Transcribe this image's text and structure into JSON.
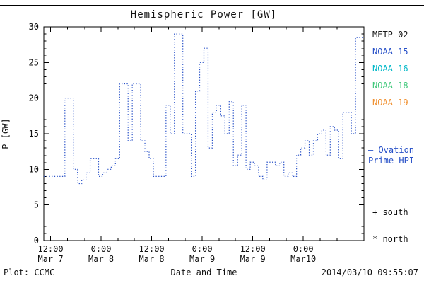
{
  "footer": {
    "plot_credit": "Plot: CCMC",
    "timestamp": "2014/03/10 09:55:07"
  },
  "legend": {
    "satellites": [
      {
        "label": "METP-02",
        "color": "#1a1a1a"
      },
      {
        "label": "NOAA-15",
        "color": "#2851c8"
      },
      {
        "label": "NOAA-16",
        "color": "#00b8c8"
      },
      {
        "label": "NOAA-18",
        "color": "#3fc87a"
      },
      {
        "label": "NOAA-19",
        "color": "#f09030"
      }
    ],
    "series_note": {
      "line1": "— Ovation",
      "line2": "Prime HPI",
      "color": "#2851c8"
    },
    "south_marker": "+ south",
    "north_marker": "* north"
  },
  "chart_data": {
    "type": "line",
    "subtype": "dotted-step",
    "title": "Hemispheric Power [GW]",
    "xlabel": "Date and Time",
    "ylabel": "P [GW]",
    "ylim": [
      0,
      30
    ],
    "yticks": [
      0,
      5,
      10,
      15,
      20,
      25,
      30
    ],
    "grid": false,
    "legend_position": "right",
    "line_color": "#2851c8",
    "x_unit": "hours, hourly Ovation Prime HPI values starting ~10:00 UT Mar 7 2014",
    "xticks": [
      {
        "pos_hours": 1.6,
        "time": "12:00",
        "date": "Mar 7"
      },
      {
        "pos_hours": 13.6,
        "time": "0:00",
        "date": "Mar 8"
      },
      {
        "pos_hours": 25.6,
        "time": "12:00",
        "date": "Mar 8"
      },
      {
        "pos_hours": 37.6,
        "time": "0:00",
        "date": "Mar 9"
      },
      {
        "pos_hours": 49.6,
        "time": "12:00",
        "date": "Mar 9"
      },
      {
        "pos_hours": 61.6,
        "time": "0:00",
        "date": "Mar10"
      }
    ],
    "values_hourly_gw": [
      9,
      9,
      9,
      9,
      9,
      20,
      20,
      10,
      8,
      8.5,
      9.5,
      11.5,
      11.5,
      9,
      9.5,
      10,
      10.5,
      11.5,
      22,
      22,
      14,
      22,
      22,
      14,
      12.5,
      11.5,
      9,
      9,
      9,
      19,
      15,
      29,
      29,
      15,
      15,
      9,
      21,
      25,
      27,
      13,
      18,
      19,
      17.5,
      15,
      19.5,
      10.5,
      12,
      19,
      10,
      11,
      10.5,
      9,
      8.5,
      11,
      11,
      10.5,
      11,
      9,
      9.5,
      9,
      12,
      13,
      14,
      12,
      14,
      15,
      15.5,
      12,
      16,
      15.5,
      11.5,
      18,
      18,
      15,
      28.5,
      28.5
    ]
  }
}
